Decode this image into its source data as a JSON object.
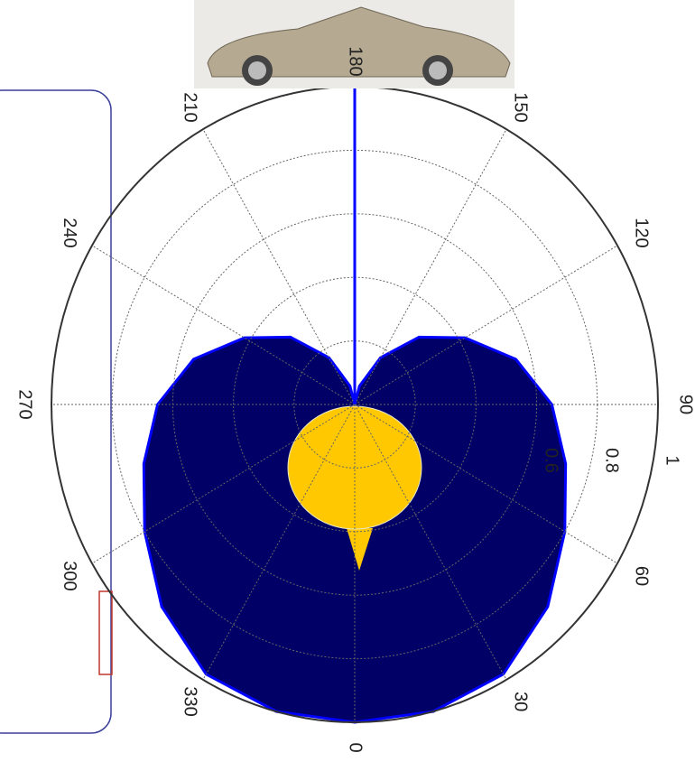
{
  "chart_data": {
    "type": "polar",
    "theta": [
      0,
      15,
      30,
      45,
      60,
      75,
      90,
      105,
      120,
      135,
      150,
      165,
      180,
      195,
      210,
      225,
      240,
      255,
      270,
      285,
      300,
      315,
      330,
      345
    ],
    "values": [
      1,
      1,
      0.98,
      0.9,
      0.8,
      0.72,
      0.65,
      0.55,
      0.42,
      0.3,
      0.17,
      0.06,
      0,
      0.06,
      0.17,
      0.3,
      0.42,
      0.55,
      0.65,
      0.72,
      0.8,
      0.9,
      0.98,
      1
    ],
    "color": "#000066",
    "edge_color": "#0000ff",
    "thetaticks": [
      0,
      30,
      60,
      90,
      120,
      150,
      180,
      210,
      240,
      270,
      300,
      330
    ],
    "rlim": [
      0,
      1
    ],
    "rticks": [
      0.6,
      0.8,
      1
    ],
    "rgrid": [
      0.2,
      0.4
    ],
    "grid": true,
    "direction_line": {
      "theta": 180,
      "r": 1,
      "color": "#0000ff"
    }
  }
}
